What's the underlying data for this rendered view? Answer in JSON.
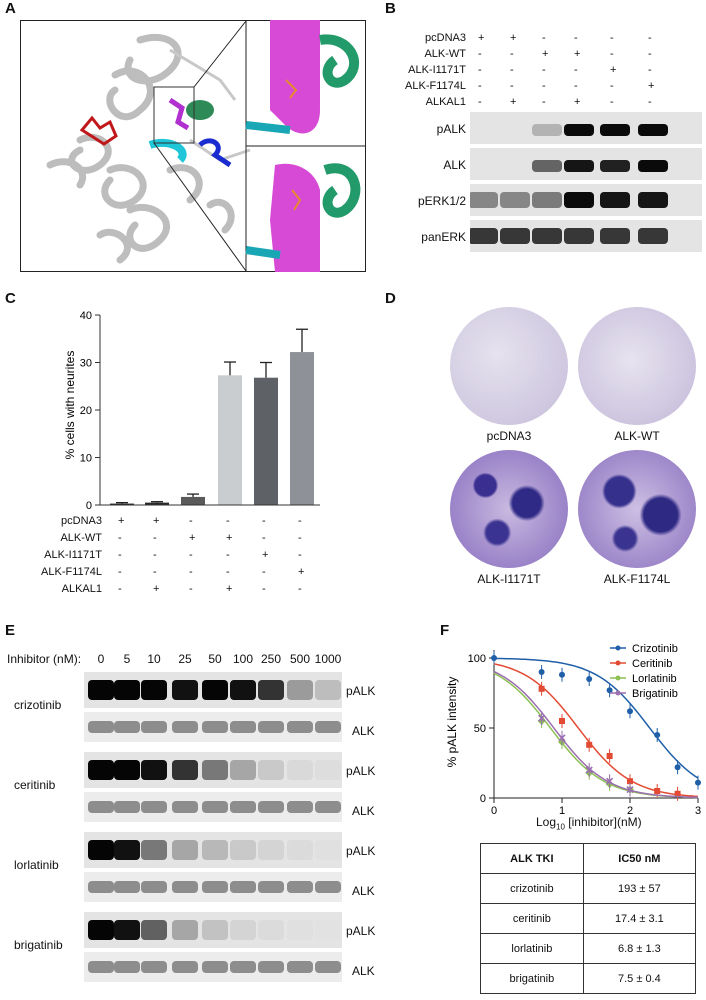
{
  "panels": {
    "A": "A",
    "B": "B",
    "C": "C",
    "D": "D",
    "E": "E",
    "F": "F"
  },
  "panelB": {
    "rows": [
      {
        "label": "pcDNA3",
        "signs": [
          "+",
          "+",
          "-",
          "-",
          "-",
          "-"
        ]
      },
      {
        "label": "ALK-WT",
        "signs": [
          "-",
          "-",
          "+",
          "+",
          "-",
          "-"
        ]
      },
      {
        "label": "ALK-I1171T",
        "signs": [
          "-",
          "-",
          "-",
          "-",
          "+",
          "-"
        ]
      },
      {
        "label": "ALK-F1174L",
        "signs": [
          "-",
          "-",
          "-",
          "-",
          "-",
          "+"
        ]
      },
      {
        "label": "ALKAL1",
        "signs": [
          "-",
          "+",
          "-",
          "+",
          "-",
          "-"
        ]
      }
    ],
    "blots": [
      "pALK",
      "ALK",
      "pERK1/2",
      "panERK"
    ]
  },
  "panelC": {
    "rows": [
      {
        "label": "pcDNA3",
        "signs": [
          "+",
          "+",
          "-",
          "-",
          "-",
          "-"
        ]
      },
      {
        "label": "ALK-WT",
        "signs": [
          "-",
          "-",
          "+",
          "+",
          "-",
          "-"
        ]
      },
      {
        "label": "ALK-I1171T",
        "signs": [
          "-",
          "-",
          "-",
          "-",
          "+",
          "-"
        ]
      },
      {
        "label": "ALK-F1174L",
        "signs": [
          "-",
          "-",
          "-",
          "-",
          "-",
          "+"
        ]
      },
      {
        "label": "ALKAL1",
        "signs": [
          "-",
          "+",
          "-",
          "+",
          "-",
          "-"
        ]
      }
    ]
  },
  "chart_data": [
    {
      "type": "bar",
      "ylabel": "% cells with neurites",
      "ylim": [
        0,
        40
      ],
      "yticks": [
        0,
        10,
        20,
        30,
        40
      ],
      "values": [
        0.3,
        0.5,
        1.7,
        27.3,
        26.8,
        32.2
      ],
      "errors": [
        0.2,
        0.2,
        0.6,
        2.8,
        3.2,
        4.8
      ],
      "colors": [
        "#2a2a2a",
        "#2a2a2a",
        "#5a5a5a",
        "#c9cdd0",
        "#5e6266",
        "#8e9298"
      ]
    },
    {
      "type": "scatter",
      "ylabel": "% pALK intensity",
      "xlabel": "Log10 [inhibitor](nM)",
      "xlim": [
        0,
        3
      ],
      "ylim": [
        0,
        100
      ],
      "xticks": [
        0,
        1,
        2,
        3
      ],
      "yticks": [
        0,
        50,
        100
      ],
      "series": [
        {
          "name": "Crizotinib",
          "color": "#1f5fa8",
          "marker": "circle",
          "ic50_log": 2.29,
          "x": [
            0,
            0.7,
            1,
            1.4,
            1.7,
            2,
            2.4,
            2.7,
            3
          ],
          "y": [
            100,
            90,
            88,
            85,
            77,
            62,
            45,
            22,
            11
          ]
        },
        {
          "name": "Ceritinib",
          "color": "#e24a33",
          "marker": "square",
          "ic50_log": 1.24,
          "x": [
            0.7,
            1,
            1.4,
            1.7,
            2,
            2.4,
            2.7
          ],
          "y": [
            78,
            55,
            38,
            30,
            12,
            5,
            3
          ]
        },
        {
          "name": "Lorlatinib",
          "color": "#8cc152",
          "marker": "diamond",
          "ic50_log": 0.83,
          "x": [
            0.7,
            1,
            1.4,
            1.7,
            2
          ],
          "y": [
            55,
            40,
            18,
            10,
            6
          ]
        },
        {
          "name": "Brigatinib",
          "color": "#9b6fb0",
          "marker": "x",
          "ic50_log": 0.88,
          "x": [
            0.7,
            1,
            1.4,
            1.7,
            2
          ],
          "y": [
            57,
            43,
            20,
            12,
            6
          ]
        }
      ]
    }
  ],
  "panelD": {
    "labels": [
      "pcDNA3",
      "ALK-WT",
      "ALK-I1171T",
      "ALK-F1174L"
    ]
  },
  "panelE": {
    "inhibitor_label": "Inhibitor (nM):",
    "concs": [
      "0",
      "5",
      "10",
      "25",
      "50",
      "100",
      "250",
      "500",
      "1000"
    ],
    "drugs": [
      {
        "name": "crizotinib",
        "p": [
          1,
          1,
          1,
          0.95,
          1,
          0.95,
          0.8,
          0.35,
          0.2
        ]
      },
      {
        "name": "ceritinib",
        "p": [
          1,
          1,
          0.95,
          0.8,
          0.5,
          0.3,
          0.15,
          0.08,
          0.06
        ]
      },
      {
        "name": "lorlatinib",
        "p": [
          1,
          0.95,
          0.5,
          0.3,
          0.22,
          0.15,
          0.1,
          0.07,
          0.05
        ]
      },
      {
        "name": "brigatinib",
        "p": [
          1,
          0.95,
          0.6,
          0.3,
          0.18,
          0.1,
          0.07,
          0.05,
          0.04
        ]
      }
    ],
    "p_label": "pALK",
    "t_label": "ALK"
  },
  "ic50_table": {
    "headers": [
      "ALK  TKI",
      "IC50  nM"
    ],
    "rows": [
      [
        "crizotinib",
        "193 ± 57"
      ],
      [
        "ceritinib",
        "17.4 ± 3.1"
      ],
      [
        "lorlatinib",
        "6.8 ± 1.3"
      ],
      [
        "brigatinib",
        "7.5 ± 0.4"
      ]
    ]
  }
}
